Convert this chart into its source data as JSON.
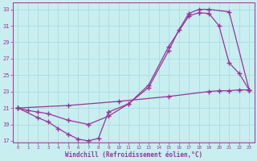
{
  "xlabel": "Windchill (Refroidissement éolien,°C)",
  "bg_color": "#c8eef0",
  "line_color": "#993399",
  "grid_color": "#aadde0",
  "xlim": [
    -0.5,
    23.5
  ],
  "ylim": [
    16.8,
    33.8
  ],
  "xticks": [
    0,
    1,
    2,
    3,
    4,
    5,
    6,
    7,
    8,
    9,
    10,
    11,
    12,
    13,
    14,
    15,
    16,
    17,
    18,
    19,
    20,
    21,
    22,
    23
  ],
  "yticks": [
    17,
    19,
    21,
    23,
    25,
    27,
    29,
    31,
    33
  ],
  "line1_x": [
    0,
    1,
    2,
    3,
    5,
    7,
    9,
    11,
    13,
    15,
    16,
    17,
    18,
    19,
    21,
    23
  ],
  "line1_y": [
    21.0,
    20.7,
    20.5,
    20.3,
    19.5,
    19.0,
    20.0,
    21.5,
    23.5,
    28.0,
    30.5,
    32.5,
    33.0,
    33.0,
    32.7,
    23.2
  ],
  "line2_x": [
    0,
    2,
    3,
    4,
    5,
    6,
    7,
    8,
    9,
    11,
    13,
    15,
    17,
    18,
    19,
    20,
    21,
    22,
    23
  ],
  "line2_y": [
    21.0,
    19.8,
    19.3,
    18.5,
    17.8,
    17.2,
    17.0,
    17.3,
    20.5,
    21.5,
    23.8,
    28.5,
    32.2,
    32.6,
    32.5,
    31.0,
    26.5,
    25.2,
    23.2
  ],
  "line3_x": [
    0,
    5,
    10,
    15,
    19,
    20,
    21,
    22,
    23
  ],
  "line3_y": [
    21.0,
    21.3,
    21.8,
    22.4,
    23.0,
    23.1,
    23.1,
    23.2,
    23.2
  ]
}
